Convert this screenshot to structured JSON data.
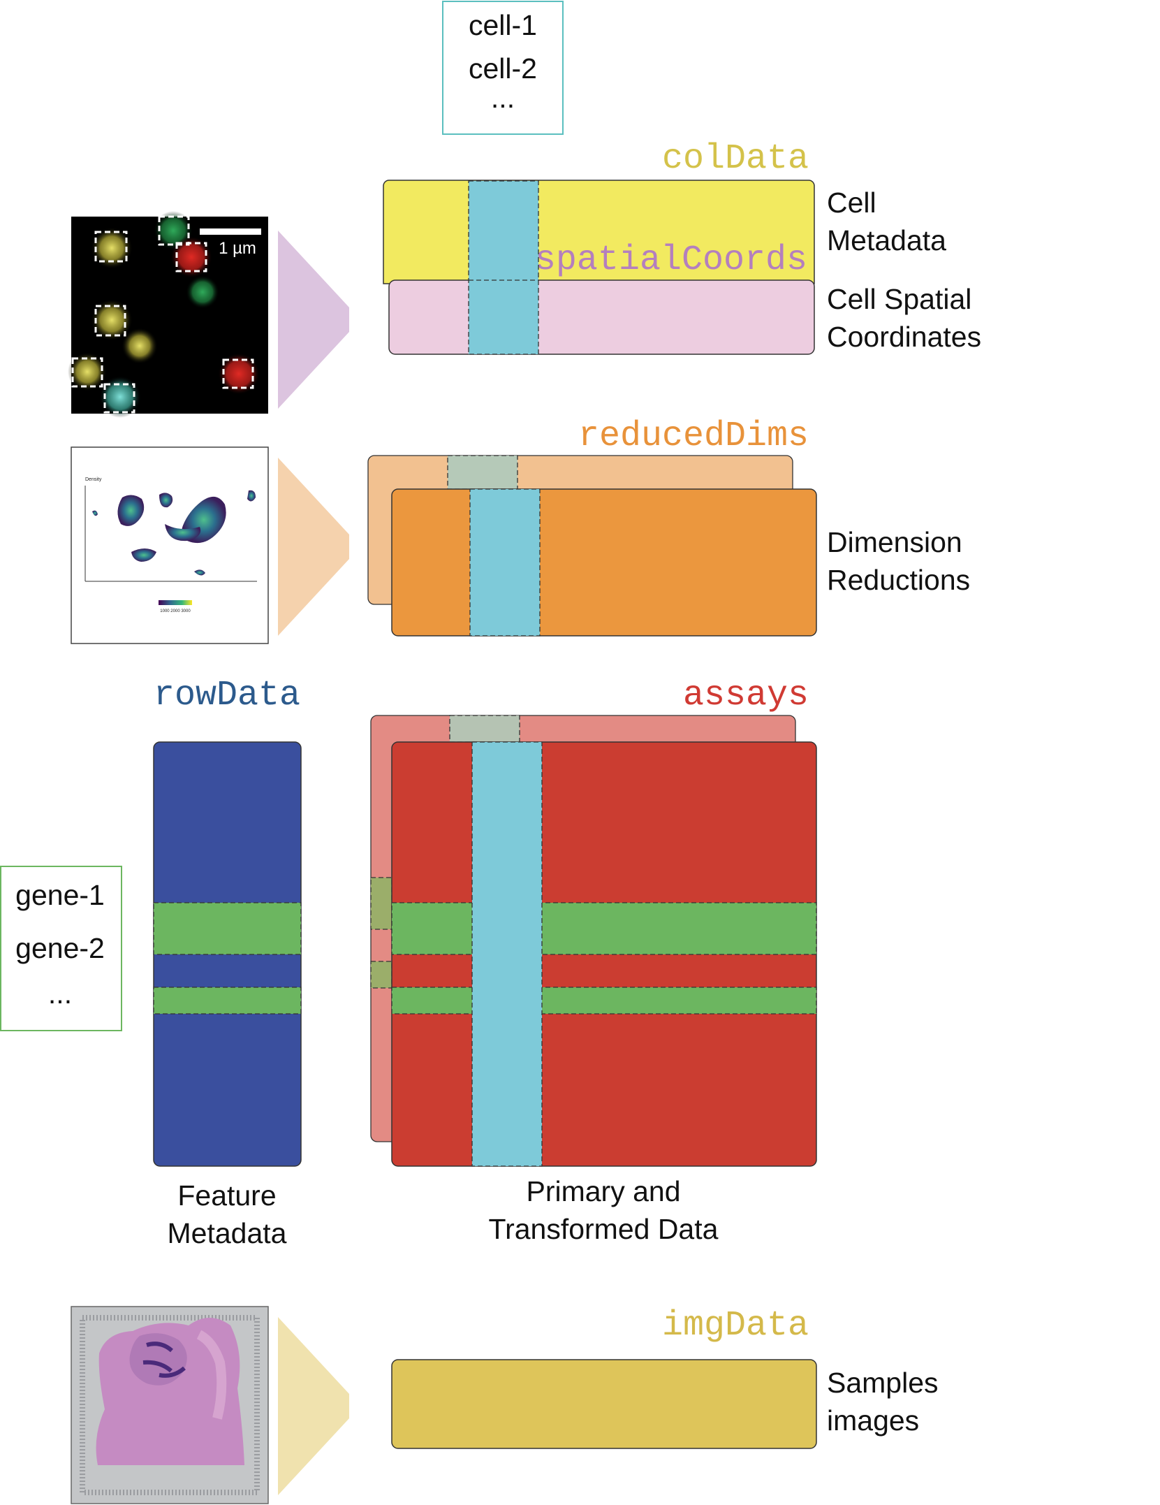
{
  "cell_box": {
    "items": [
      "cell-1",
      "cell-2",
      "..."
    ]
  },
  "gene_box": {
    "items": [
      "gene-1",
      "gene-2",
      "..."
    ]
  },
  "slots": {
    "colData": {
      "name": "colData",
      "color": "#d4c24a"
    },
    "spatialCoords": {
      "name": "spatialCoords",
      "color": "#b47fbe"
    },
    "reducedDims": {
      "name": "reducedDims",
      "color": "#e8923a"
    },
    "rowData": {
      "name": "rowData",
      "color": "#2c5a8c"
    },
    "assays": {
      "name": "assays",
      "color": "#d03a33"
    },
    "imgData": {
      "name": "imgData",
      "color": "#d4b94a"
    }
  },
  "descriptions": {
    "cell_metadata": [
      "Cell",
      "Metadata"
    ],
    "cell_spatial": [
      "Cell Spatial",
      "Coordinates"
    ],
    "dimension_reductions": [
      "Dimension",
      "Reductions"
    ],
    "feature_metadata": [
      "Feature",
      "Metadata"
    ],
    "primary_data": [
      "Primary and",
      "Transformed Data"
    ],
    "sample_images": [
      "Samples",
      "images"
    ]
  },
  "thumbnails": {
    "microscopy": {
      "scale_label": "1 µm"
    },
    "density_plot": {
      "title": "Density",
      "legend_ticks": "1000 2000 3000"
    }
  },
  "colors": {
    "coldata_fill": "#f2ea60",
    "spatial_fill": "#edcde0",
    "cell_highlight": "#7ecad9",
    "reduceddims_front": "#eb973e",
    "reduceddims_back": "#f2c190",
    "rowdata_fill": "#3a4f9e",
    "gene_highlight": "#6cb660",
    "assays_front": "#cb3d31",
    "assays_back": "#e38b84",
    "imgdata_fill": "#dec55a",
    "arrow_purple": "#dcc4df",
    "arrow_orange": "#f5d2ad",
    "arrow_yellow": "#f0e2ae",
    "cell_box_border": "#5bbfbf",
    "gene_box_border": "#6cb660"
  }
}
